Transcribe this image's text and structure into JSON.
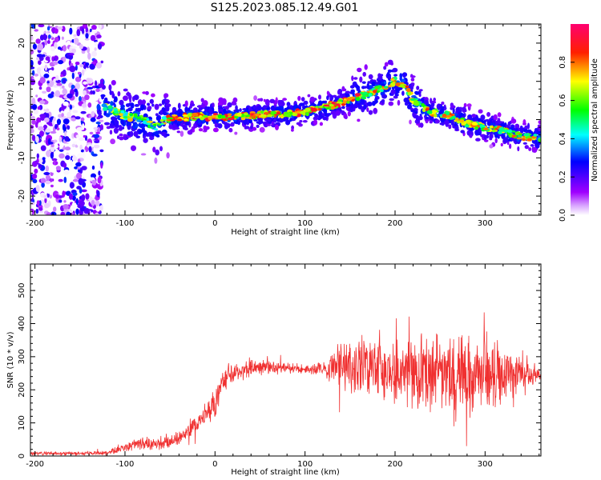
{
  "title": "S125.2023.085.12.49.G01",
  "chart_data": [
    {
      "type": "heatmap",
      "xlabel": "Height of straight line (km)",
      "ylabel": "Frequency (Hz)",
      "xlim": [
        -205,
        362
      ],
      "ylim": [
        -25,
        25
      ],
      "xticks": [
        -200,
        -100,
        0,
        100,
        200,
        300
      ],
      "yticks": [
        -20,
        -10,
        0,
        10,
        20
      ],
      "colorbar": {
        "label": "Normalized spectral amplitude",
        "ticks": [
          "0.0",
          "0.2",
          "0.4",
          "0.6",
          "0.8"
        ],
        "range": [
          0,
          1
        ],
        "colormap": [
          "#ffffff",
          "#a000ff",
          "#0000ff",
          "#00ffff",
          "#00ff00",
          "#ffff00",
          "#ff0000",
          "#ff0080"
        ]
      },
      "ridge": {
        "x": [
          -135,
          -120,
          -100,
          -80,
          -65,
          -55,
          -40,
          -20,
          0,
          20,
          40,
          60,
          80,
          100,
          120,
          140,
          160,
          175,
          190,
          200,
          210,
          220,
          240,
          260,
          280,
          300,
          320,
          340,
          362
        ],
        "y": [
          6,
          3,
          1,
          0,
          -2,
          0,
          0.5,
          0.8,
          0.8,
          0.8,
          1,
          1.5,
          1.5,
          2,
          3,
          4.5,
          6,
          7,
          9,
          10,
          9,
          5,
          2,
          1,
          -1,
          -2,
          -3,
          -4.5,
          -4.8
        ]
      },
      "noise_region_x": [
        -205,
        -125
      ],
      "grid": false
    },
    {
      "type": "line",
      "xlabel": "Height of straight line (km)",
      "ylabel": "SNR (10 * v/v)",
      "xlim": [
        -205,
        362
      ],
      "ylim": [
        0,
        580
      ],
      "xticks": [
        -200,
        -100,
        0,
        100,
        200,
        300
      ],
      "yticks": [
        0,
        100,
        200,
        300,
        400,
        500
      ],
      "color": "#f03030",
      "envelope": {
        "x": [
          -205,
          -150,
          -120,
          -100,
          -80,
          -60,
          -40,
          -20,
          -10,
          0,
          10,
          20,
          40,
          60,
          80,
          100,
          120,
          140,
          160,
          180,
          200,
          220,
          240,
          260,
          280,
          300,
          320,
          340,
          362
        ],
        "mean": [
          8,
          8,
          10,
          25,
          40,
          35,
          55,
          100,
          130,
          160,
          230,
          250,
          265,
          270,
          265,
          260,
          265,
          270,
          265,
          260,
          255,
          250,
          245,
          250,
          245,
          250,
          245,
          250,
          245
        ],
        "amp": [
          6,
          6,
          8,
          15,
          25,
          20,
          25,
          40,
          45,
          50,
          50,
          35,
          30,
          25,
          20,
          18,
          25,
          90,
          110,
          110,
          110,
          120,
          150,
          170,
          150,
          140,
          130,
          90,
          15
        ]
      },
      "grid": false
    }
  ]
}
